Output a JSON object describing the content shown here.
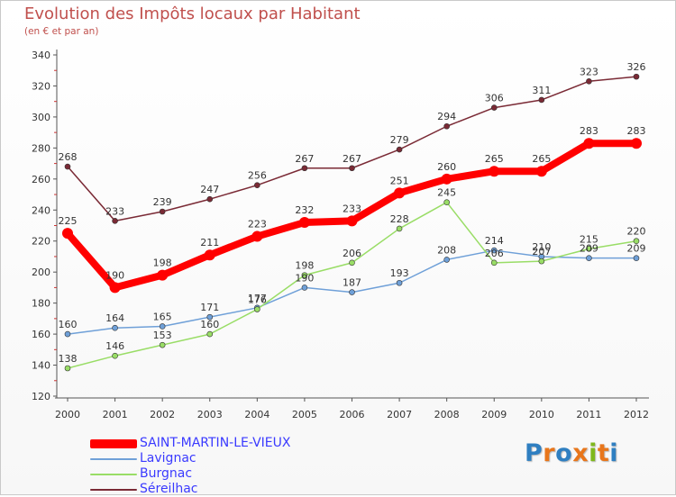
{
  "title": "Evolution des Impôts locaux par Habitant",
  "subtitle": "(en € et par an)",
  "logo": {
    "text": "Proxiti",
    "colors": [
      "#2f7fc1",
      "#e8761b",
      "#2f7fc1",
      "#e8761b",
      "#7fb81c",
      "#e8761b",
      "#2f7fc1"
    ]
  },
  "chart_data": {
    "type": "line",
    "title": "Evolution des Impôts locaux par Habitant",
    "subtitle": "(en € et par an)",
    "xlabel": "",
    "ylabel": "",
    "ylim": [
      120,
      340
    ],
    "yticks": [
      120,
      140,
      160,
      180,
      200,
      220,
      240,
      260,
      280,
      300,
      320,
      340
    ],
    "grid": false,
    "legend_position": "bottom-left",
    "categories": [
      "2000",
      "2001",
      "2002",
      "2003",
      "2004",
      "2005",
      "2006",
      "2007",
      "2008",
      "2009",
      "2010",
      "2011",
      "2012"
    ],
    "series": [
      {
        "name": "SAINT-MARTIN-LE-VIEUX",
        "color": "#ff0000",
        "values": [
          225,
          190,
          198,
          211,
          223,
          232,
          233,
          251,
          260,
          265,
          265,
          283,
          283
        ]
      },
      {
        "name": "Lavignac",
        "color": "#6fa0d8",
        "values": [
          160,
          164,
          165,
          171,
          177,
          190,
          187,
          193,
          208,
          214,
          210,
          209,
          209
        ]
      },
      {
        "name": "Burgnac",
        "color": "#99dd66",
        "values": [
          138,
          146,
          153,
          160,
          176,
          198,
          206,
          228,
          245,
          206,
          207,
          215,
          220
        ]
      },
      {
        "name": "Séreilhac",
        "color": "#7a2a35",
        "values": [
          268,
          233,
          239,
          247,
          256,
          267,
          267,
          279,
          294,
          306,
          311,
          323,
          326
        ]
      }
    ]
  }
}
